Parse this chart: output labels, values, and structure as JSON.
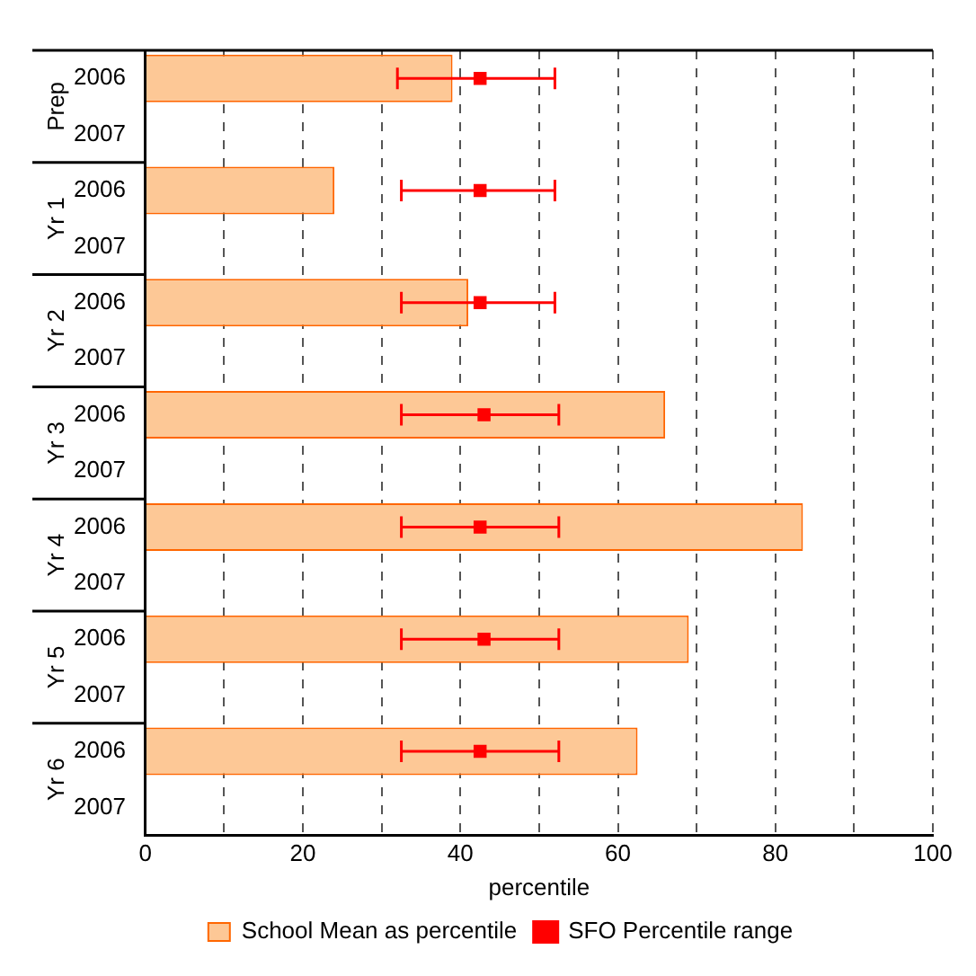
{
  "chart_data": {
    "type": "bar",
    "orientation": "horizontal",
    "categories": [
      "2006",
      "2007",
      "2006",
      "2007",
      "2006",
      "2007",
      "2006",
      "2007",
      "2006",
      "2007",
      "2006",
      "2007",
      "2006",
      "2007"
    ],
    "annotations": [
      "Prep",
      "Yr 1",
      "Yr 2",
      "Yr 3",
      "Yr 4",
      "Yr 5",
      "Yr 6"
    ],
    "series": [
      {
        "name": "School Mean as percentile",
        "color": "#fdc896",
        "values": [
          39,
          null,
          24,
          null,
          41,
          null,
          66,
          null,
          83.5,
          null,
          69,
          null,
          62.5,
          null
        ]
      },
      {
        "name": "SFO Percentile range",
        "type": "scatter",
        "color": "#ff0000",
        "marker": "square",
        "values": [
          42.5,
          null,
          42.5,
          null,
          42.5,
          null,
          43,
          null,
          42.5,
          null,
          43,
          null,
          42.5,
          null
        ],
        "errors": [
          [
            32,
            52
          ],
          null,
          [
            32.5,
            52
          ],
          null,
          [
            32.5,
            52
          ],
          null,
          [
            32.5,
            52.5
          ],
          null,
          [
            32.5,
            52.5
          ],
          null,
          [
            32.5,
            52.5
          ],
          null,
          [
            32.5,
            52.5
          ],
          null
        ]
      }
    ],
    "xlabel": "percentile",
    "xlim": [
      0,
      100
    ],
    "xticks": [
      0,
      {
        "value": 10,
        "label": null
      },
      20,
      {
        "value": 30,
        "label": null
      },
      40,
      {
        "value": 50,
        "label": null
      },
      60,
      {
        "value": 70,
        "label": null
      },
      80,
      {
        "value": 90,
        "label": null
      },
      100
    ],
    "grid": "x",
    "legend": "bottom"
  }
}
